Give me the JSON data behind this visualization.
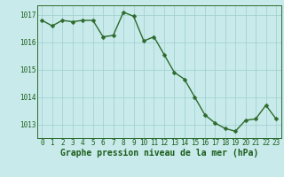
{
  "x": [
    0,
    1,
    2,
    3,
    4,
    5,
    6,
    7,
    8,
    9,
    10,
    11,
    12,
    13,
    14,
    15,
    16,
    17,
    18,
    19,
    20,
    21,
    22,
    23
  ],
  "y": [
    1016.8,
    1016.6,
    1016.8,
    1016.75,
    1016.8,
    1016.8,
    1016.2,
    1016.25,
    1017.1,
    1016.95,
    1016.05,
    1016.2,
    1015.55,
    1014.9,
    1014.65,
    1014.0,
    1013.35,
    1013.05,
    1012.85,
    1012.75,
    1013.15,
    1013.2,
    1013.7,
    1013.2
  ],
  "line_color": "#2d6a2d",
  "marker_color": "#2d6a2d",
  "bg_color": "#c8eaea",
  "plot_bg_color": "#c8eaea",
  "grid_color": "#9ecece",
  "xlabel": "Graphe pression niveau de la mer (hPa)",
  "xlabel_color": "#1a5c1a",
  "tick_color": "#1a5c1a",
  "ylim_min": 1012.5,
  "ylim_max": 1017.35,
  "yticks": [
    1013,
    1014,
    1015,
    1016,
    1017
  ],
  "xticks": [
    0,
    1,
    2,
    3,
    4,
    5,
    6,
    7,
    8,
    9,
    10,
    11,
    12,
    13,
    14,
    15,
    16,
    17,
    18,
    19,
    20,
    21,
    22,
    23
  ],
  "spine_color": "#2d6a2d",
  "marker_size": 2.5,
  "line_width": 1.0,
  "tick_fontsize": 5.5,
  "xlabel_fontsize": 7.0
}
